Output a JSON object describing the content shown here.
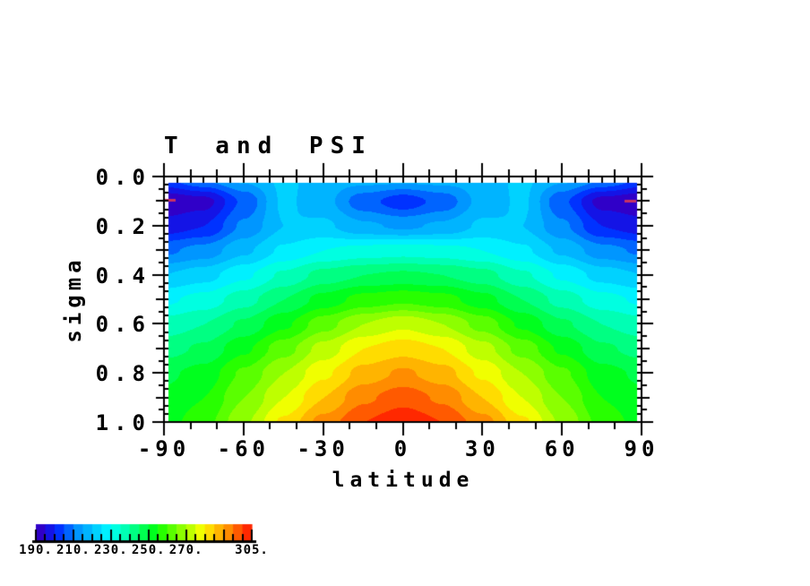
{
  "title": "T and PSI",
  "plot": {
    "x_axis": {
      "label": "latitude",
      "min": -90,
      "max": 90,
      "tick_values": [
        -90,
        -60,
        -30,
        0,
        30,
        60,
        90
      ],
      "tick_labels": [
        "-90",
        "-60",
        "-30",
        "0",
        "30",
        "60",
        "90"
      ],
      "minor_step": 10,
      "comb_step": 5
    },
    "y_axis": {
      "label": "sigma",
      "min": 0.0,
      "max": 1.0,
      "inverted": true,
      "tick_values": [
        0.0,
        0.2,
        0.4,
        0.6,
        0.8,
        1.0
      ],
      "tick_labels": [
        "0.0",
        "0.2",
        "0.4",
        "0.6",
        "0.8",
        "1.0"
      ],
      "minor_step": 0.05,
      "comb_divisions": 30
    }
  },
  "colorbar": {
    "min": 190,
    "max": 305,
    "step": 5,
    "labels": [
      "190.",
      "210.",
      "230.",
      "250.",
      "270.",
      "305."
    ],
    "label_values": [
      190,
      210,
      230,
      250,
      270,
      305
    ],
    "colors": [
      "#3000C8",
      "#1414E6",
      "#0032FF",
      "#0064FF",
      "#0096FF",
      "#00B4FF",
      "#00D2FF",
      "#00F0FF",
      "#00FFE1",
      "#00FFB4",
      "#00FF82",
      "#00FF50",
      "#00FF1E",
      "#28FF00",
      "#5AFF00",
      "#8CFF00",
      "#BEFF00",
      "#F0FF00",
      "#FFDC00",
      "#FFB400",
      "#FF8C00",
      "#FF5A00",
      "#FF2800"
    ]
  },
  "chart_data": {
    "type": "heatmap",
    "title": "T and PSI",
    "xlabel": "latitude",
    "ylabel": "sigma",
    "x_range": [
      -90,
      90
    ],
    "y_range": [
      0.0,
      1.0
    ],
    "y_inverted": true,
    "contour_levels": {
      "min": 190,
      "max": 305,
      "step": 5
    },
    "x": [
      -90,
      -75,
      -60,
      -45,
      -30,
      -15,
      0,
      15,
      30,
      45,
      60,
      75,
      90
    ],
    "y": [
      0.0,
      0.1,
      0.2,
      0.3,
      0.4,
      0.5,
      0.6,
      0.7,
      0.8,
      0.9,
      1.0
    ],
    "values": [
      [
        205,
        212,
        217,
        221,
        218,
        218,
        218,
        218,
        218,
        221,
        217,
        212,
        205
      ],
      [
        191,
        193,
        206,
        221,
        217,
        207,
        202,
        207,
        217,
        221,
        206,
        193,
        191
      ],
      [
        197,
        200,
        211,
        220,
        221,
        216,
        214,
        216,
        221,
        220,
        211,
        200,
        197
      ],
      [
        209,
        212,
        219,
        226,
        230,
        232,
        233,
        232,
        230,
        226,
        219,
        212,
        209
      ],
      [
        220,
        223,
        229,
        236,
        242,
        245,
        246,
        245,
        242,
        236,
        229,
        223,
        220
      ],
      [
        229,
        232,
        238,
        245,
        252,
        257,
        259,
        257,
        252,
        245,
        238,
        232,
        229
      ],
      [
        237,
        240,
        246,
        254,
        263,
        270,
        274,
        270,
        263,
        254,
        246,
        240,
        237
      ],
      [
        243,
        246,
        254,
        263,
        272,
        280,
        283,
        280,
        272,
        263,
        254,
        246,
        243
      ],
      [
        249,
        252,
        261,
        270,
        279,
        287,
        291,
        287,
        279,
        270,
        261,
        252,
        249
      ],
      [
        251,
        255,
        265,
        275,
        285,
        294,
        298,
        294,
        285,
        275,
        265,
        255,
        251
      ],
      [
        253,
        258,
        269,
        281,
        292,
        300,
        304,
        300,
        292,
        281,
        269,
        258,
        253
      ]
    ],
    "psi_marks": [
      {
        "lat0": -90.0,
        "lat1": -85.5,
        "sigma": 0.093
      },
      {
        "lat0": 83.5,
        "lat1": 88.0,
        "sigma": 0.095
      }
    ],
    "psi_color": "#C83264"
  },
  "frame_color": "#000000",
  "background": "#FFFFFF"
}
